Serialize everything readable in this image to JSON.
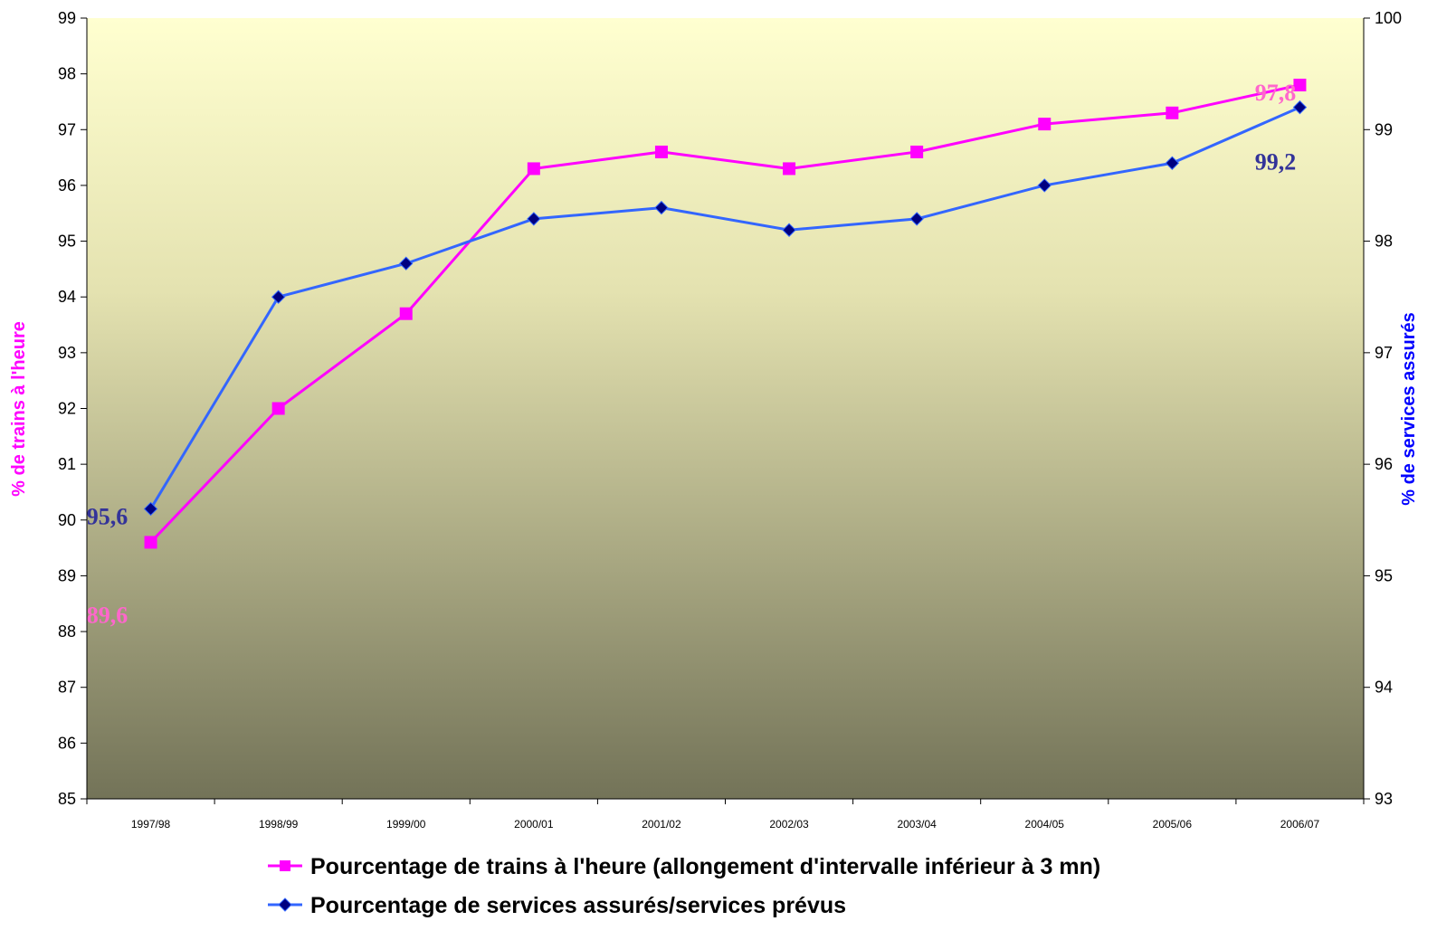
{
  "chart_data": {
    "type": "line",
    "categories": [
      "1997/98",
      "1998/99",
      "1999/00",
      "2000/01",
      "2001/02",
      "2002/03",
      "2003/04",
      "2004/05",
      "2005/06",
      "2006/07"
    ],
    "series": [
      {
        "name": "Pourcentage de trains à l'heure (allongement d'intervalle inférieur à 3 mn)",
        "axis": "left",
        "color": "#FF00FF",
        "marker": "square",
        "values": [
          89.6,
          92.0,
          93.7,
          96.3,
          96.6,
          96.3,
          96.6,
          97.1,
          97.3,
          97.8
        ]
      },
      {
        "name": "Pourcentage de services assurés/services prévus",
        "axis": "right",
        "color": "#3366FF",
        "marker_color": "#000080",
        "marker": "diamond",
        "values": [
          95.6,
          97.5,
          97.8,
          98.2,
          98.3,
          98.1,
          98.2,
          98.5,
          98.7,
          99.2
        ]
      }
    ],
    "y_left": {
      "label": "% de trains à l'heure",
      "min": 85,
      "max": 99,
      "step": 1,
      "color": "#FF00FF"
    },
    "y_right": {
      "label": "% de services assurés",
      "min": 93,
      "max": 100,
      "step": 1,
      "color": "#0000FF"
    },
    "annotations": [
      {
        "text": "95,6",
        "color": "#333399",
        "series": 1,
        "index": 0
      },
      {
        "text": "89,6",
        "color": "#FF66CC",
        "series": 0,
        "index": 0
      },
      {
        "text": "97,8",
        "color": "#FF66CC",
        "series": 0,
        "index": 9
      },
      {
        "text": "99,2",
        "color": "#333399",
        "series": 1,
        "index": 9
      }
    ],
    "legend": "bottom",
    "grid": false,
    "background": "gradient light-yellow to olive"
  }
}
